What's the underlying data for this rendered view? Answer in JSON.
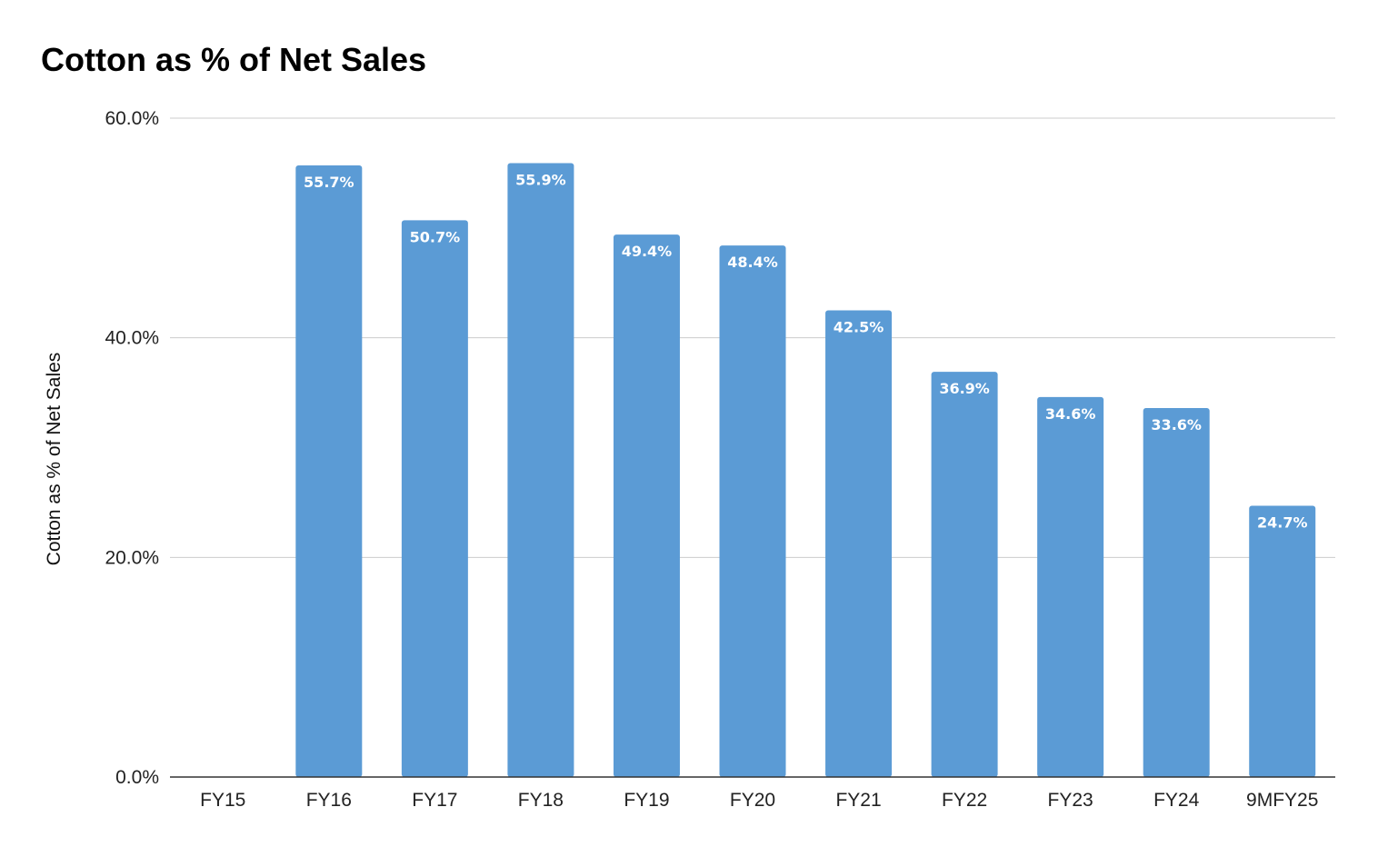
{
  "chart_data": {
    "type": "bar",
    "title": "Cotton as % of Net Sales",
    "xlabel": "",
    "ylabel": "Cotton as % of Net Sales",
    "categories": [
      "FY15",
      "FY16",
      "FY17",
      "FY18",
      "FY19",
      "FY20",
      "FY21",
      "FY22",
      "FY23",
      "FY24",
      "9MFY25"
    ],
    "values": [
      null,
      55.7,
      50.7,
      55.9,
      49.4,
      48.4,
      42.5,
      36.9,
      34.6,
      33.6,
      24.7
    ],
    "data_labels": [
      "",
      "55.7%",
      "50.7%",
      "55.9%",
      "49.4%",
      "48.4%",
      "42.5%",
      "36.9%",
      "34.6%",
      "33.6%",
      "24.7%"
    ],
    "ylim": [
      0,
      60
    ],
    "yticks": [
      0,
      20,
      40,
      60
    ],
    "ytick_labels": [
      "0.0%",
      "20.0%",
      "40.0%",
      "60.0%"
    ],
    "grid": true,
    "legend": "none",
    "colors": {
      "bar": "#5b9bd5",
      "grid": "#cccccc",
      "axis": "#333333"
    }
  }
}
